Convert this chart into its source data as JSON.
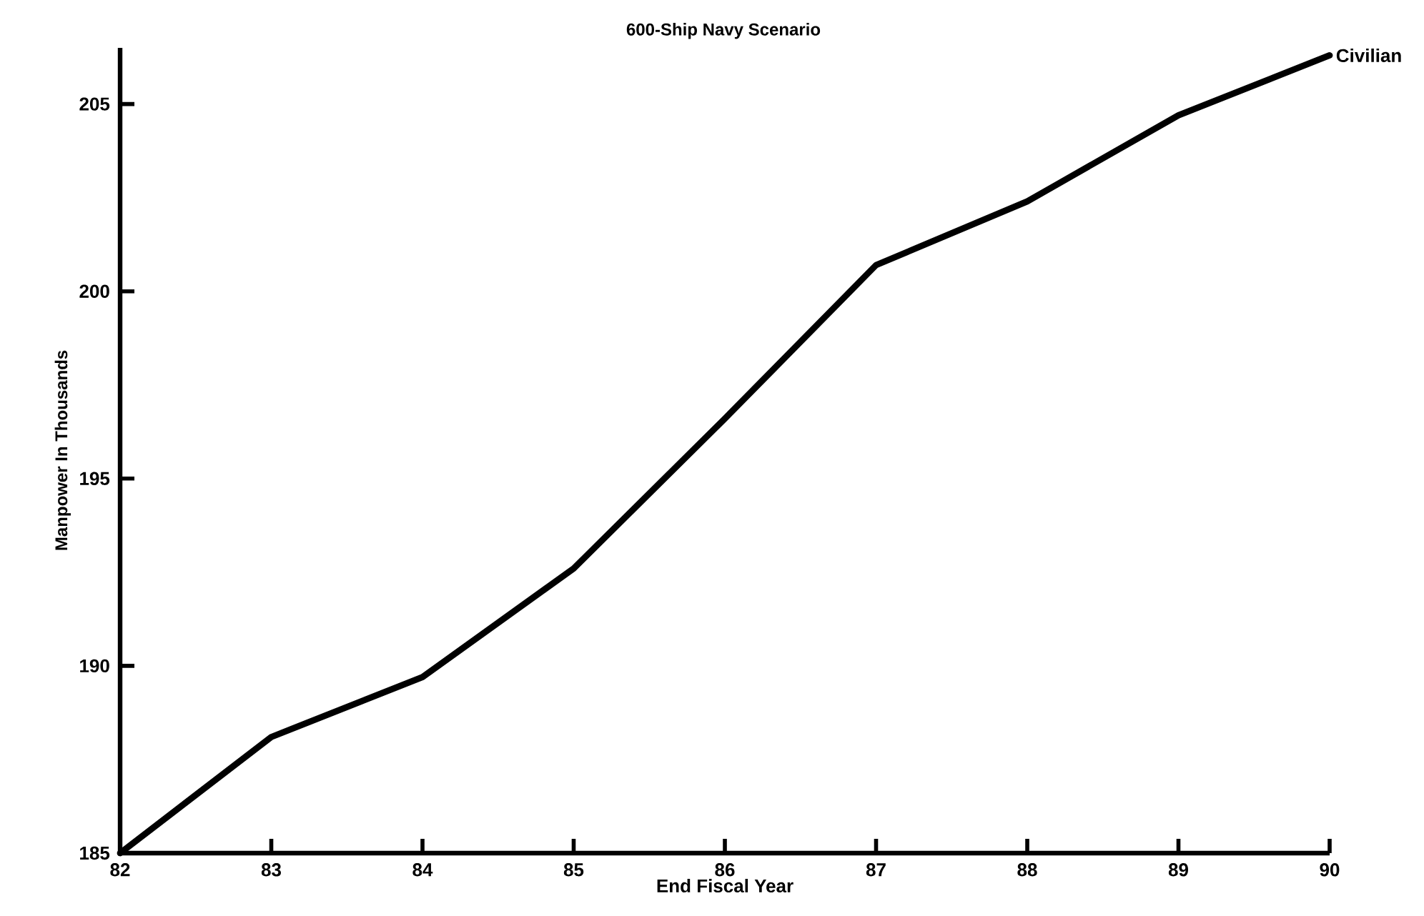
{
  "chart_data": {
    "type": "line",
    "title": "600-Ship Navy Scenario",
    "xlabel": "End Fiscal Year",
    "ylabel": "Manpower In Thousands",
    "x": [
      82,
      83,
      84,
      85,
      86,
      87,
      88,
      89,
      90
    ],
    "series": [
      {
        "name": "Civilian",
        "color": "#000000",
        "values": [
          185,
          188.1,
          189.7,
          192.6,
          196.6,
          200.7,
          202.4,
          204.7,
          206.3
        ]
      }
    ],
    "xlim": [
      82,
      90
    ],
    "ylim": [
      185,
      206.5
    ],
    "xticks": [
      82,
      83,
      84,
      85,
      86,
      87,
      88,
      89,
      90
    ],
    "yticks": [
      185,
      190,
      195,
      200,
      205
    ],
    "marker": "none"
  }
}
